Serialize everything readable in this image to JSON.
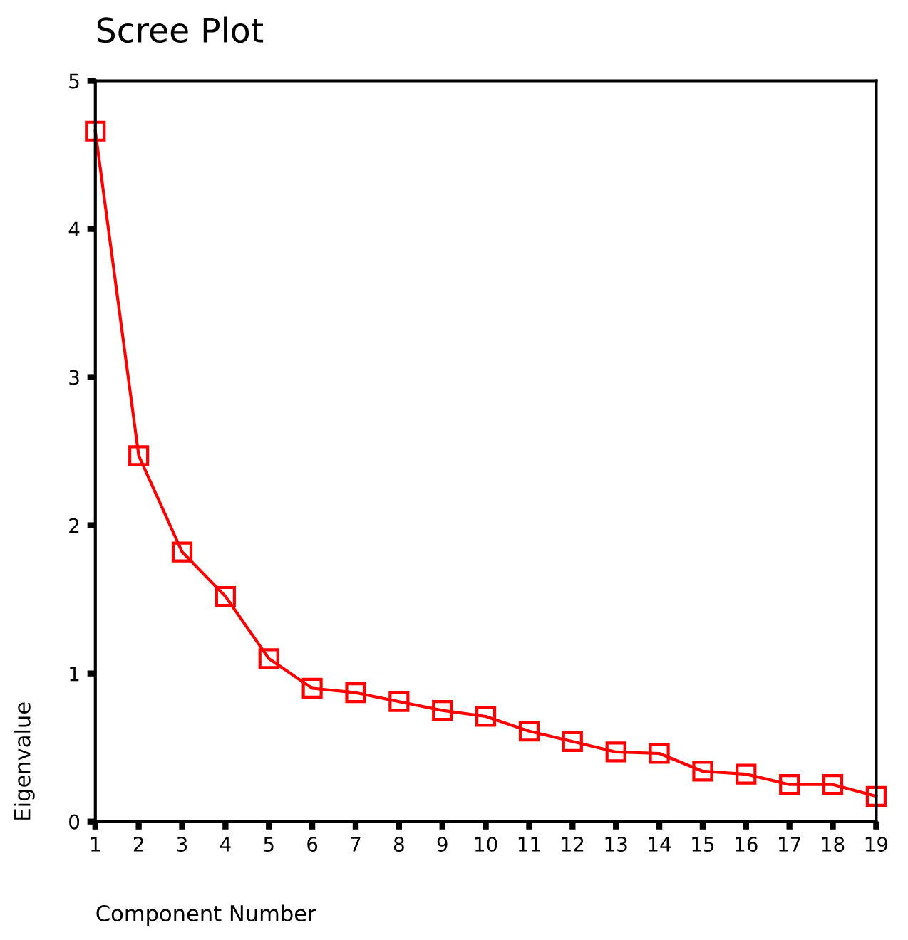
{
  "chart_data": {
    "type": "line",
    "title": "Scree Plot",
    "xlabel": "Component Number",
    "ylabel": "Eigenvalue",
    "x": [
      1,
      2,
      3,
      4,
      5,
      6,
      7,
      8,
      9,
      10,
      11,
      12,
      13,
      14,
      15,
      16,
      17,
      18,
      19
    ],
    "series": [
      {
        "color": "#ff0000",
        "values": [
          4.66,
          2.47,
          1.82,
          1.52,
          1.1,
          0.9,
          0.87,
          0.81,
          0.75,
          0.71,
          0.61,
          0.54,
          0.47,
          0.46,
          0.34,
          0.32,
          0.25,
          0.25,
          0.17
        ]
      }
    ],
    "xlim": [
      1,
      19
    ],
    "xticks": [
      1,
      2,
      3,
      4,
      5,
      6,
      7,
      8,
      9,
      10,
      11,
      12,
      13,
      14,
      15,
      16,
      17,
      18,
      19
    ],
    "ylim": [
      0,
      5
    ],
    "yticks": [
      0,
      1,
      2,
      3,
      4,
      5
    ],
    "marker": "square",
    "line_style": "solid",
    "grid": false,
    "legend": false
  }
}
